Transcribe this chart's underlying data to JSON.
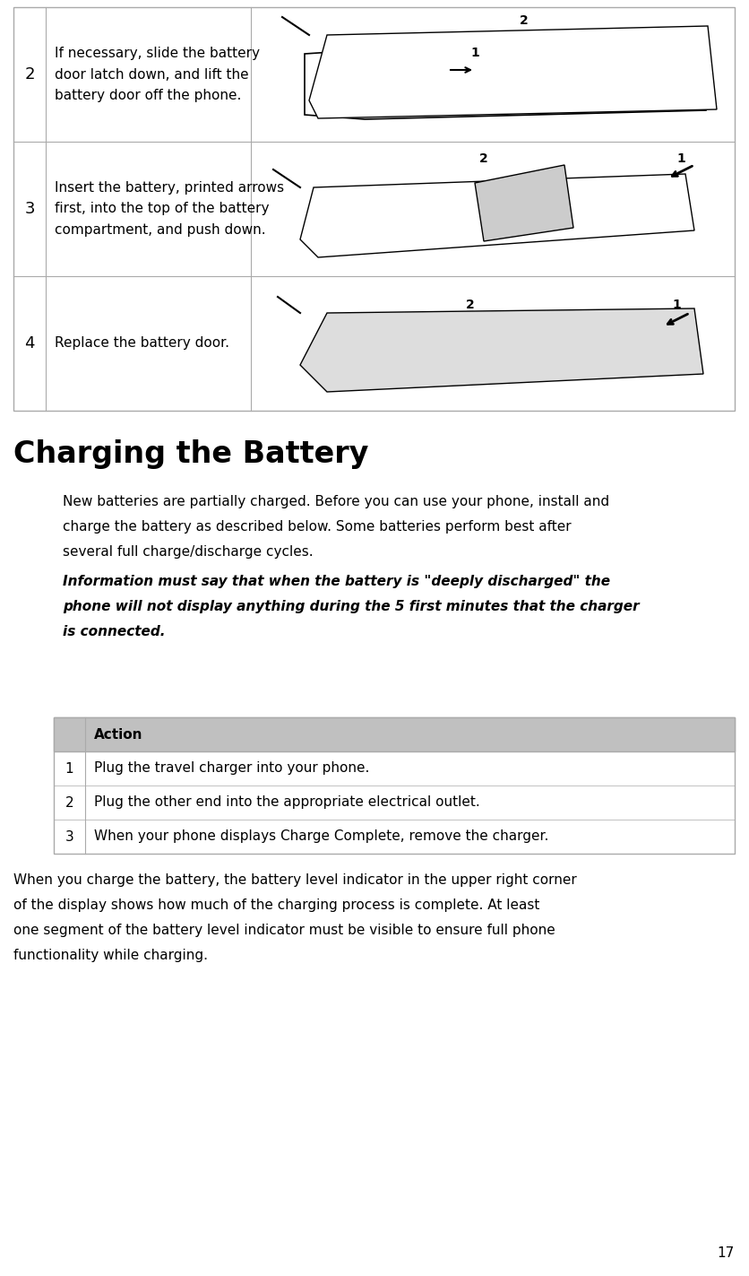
{
  "page_bg": "#ffffff",
  "page_number": "17",
  "table_top_rows": [
    {
      "num": "2",
      "text": "If necessary, slide the battery\ndoor latch down, and lift the\nbattery door off the phone."
    },
    {
      "num": "3",
      "text": "Insert the battery, printed arrows\nfirst, into the top of the battery\ncompartment, and push down."
    },
    {
      "num": "4",
      "text": "Replace the battery door."
    }
  ],
  "section_title": "Charging the Battery",
  "body_lines": [
    "New batteries are partially charged. Before you can use your phone, install and",
    "charge the battery as described below. Some batteries perform best after",
    "several full charge/discharge cycles."
  ],
  "italic_lines": [
    "Information must say that when the battery is \"deeply discharged\" the",
    "phone will not display anything during the 5 first minutes that the charger",
    "is connected."
  ],
  "action_header": "Action",
  "action_rows": [
    {
      "num": "1",
      "text": "Plug the travel charger into your phone."
    },
    {
      "num": "2",
      "text": "Plug the other end into the appropriate electrical outlet."
    },
    {
      "num": "3",
      "text": "When your phone displays Charge Complete, remove the charger."
    }
  ],
  "footer_lines": [
    "When you charge the battery, the battery level indicator in the upper right corner",
    "of the display shows how much of the charging process is complete. At least",
    "one segment of the battery level indicator must be visible to ensure full phone",
    "functionality while charging."
  ],
  "header_bg": "#c0c0c0",
  "border_color": "#aaaaaa",
  "white": "#ffffff",
  "black": "#000000"
}
